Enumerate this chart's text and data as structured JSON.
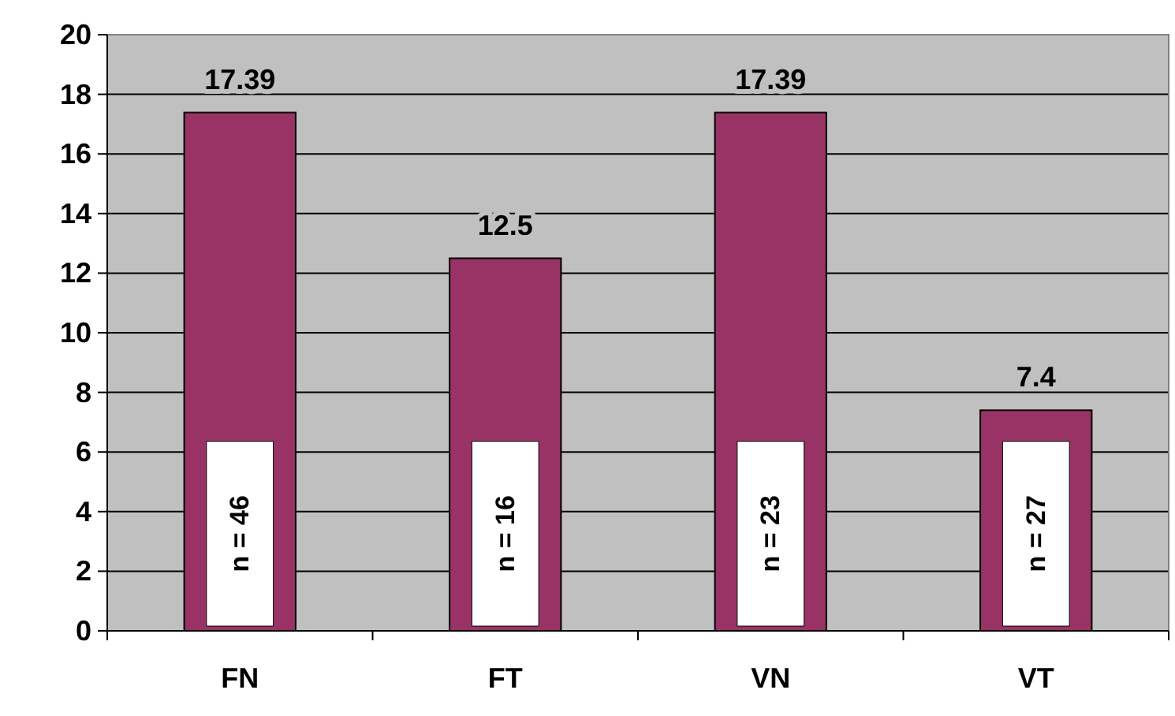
{
  "chart_data": {
    "type": "bar",
    "categories": [
      "FN",
      "FT",
      "VN",
      "VT"
    ],
    "values": [
      17.39,
      12.5,
      17.39,
      7.4
    ],
    "color": "#993366",
    "data_labels": true,
    "ylim": [
      0,
      20
    ],
    "yticks": [
      0,
      2,
      4,
      6,
      8,
      10,
      12,
      14,
      16,
      18,
      20
    ],
    "grid": "y",
    "annotations": [
      "n = 46",
      "n = 16",
      "n = 23",
      "n = 27"
    ]
  }
}
